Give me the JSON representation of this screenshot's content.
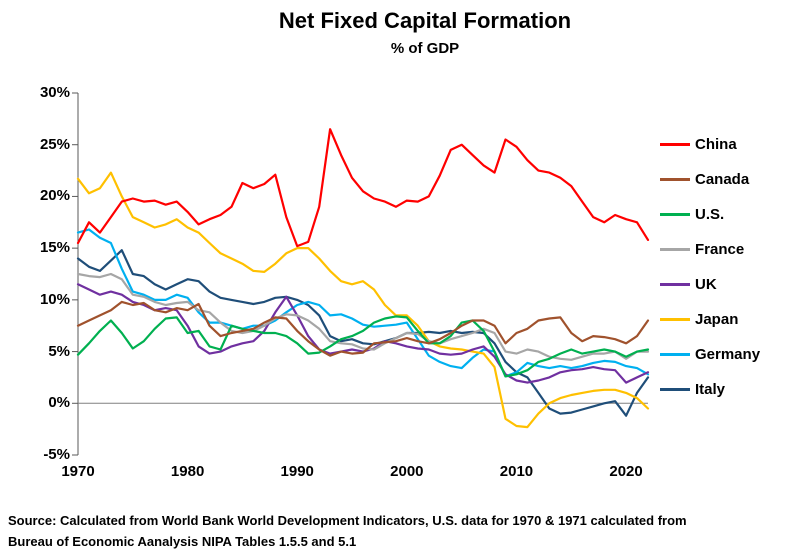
{
  "title": "Net Fixed Capital Formation",
  "subtitle": "% of GDP",
  "source": {
    "line1": "Source:  Calculated from World Bank World Development Indicators, U.S. data for 1970 & 1971 calculated from",
    "line2": "Bureau of Economic Aanalysis NIPA Tables 1.5.5 and 5.1"
  },
  "colors": {
    "axis": "#595959",
    "zero_line": "#808080",
    "background": "#FFFFFF"
  },
  "chart_data": {
    "type": "line",
    "title": "Net Fixed Capital Formation",
    "subtitle": "% of GDP",
    "xlabel": "",
    "ylabel": "",
    "xlim": [
      1970,
      2022
    ],
    "ylim": [
      -5,
      30
    ],
    "grid": false,
    "zero_line": true,
    "legend_position": "right",
    "x_ticks": [
      1970,
      1980,
      1990,
      2000,
      2010,
      2020
    ],
    "x_tick_labels": [
      "1970",
      "1980",
      "1990",
      "2000",
      "2010",
      "2020"
    ],
    "y_ticks": [
      30,
      25,
      20,
      15,
      10,
      5,
      0,
      -5
    ],
    "y_tick_labels": [
      "30%",
      "25%",
      "20%",
      "15%",
      "10%",
      "5%",
      "0%",
      "-5%"
    ],
    "years": [
      1970,
      1971,
      1972,
      1973,
      1974,
      1975,
      1976,
      1977,
      1978,
      1979,
      1980,
      1981,
      1982,
      1983,
      1984,
      1985,
      1986,
      1987,
      1988,
      1989,
      1990,
      1991,
      1992,
      1993,
      1994,
      1995,
      1996,
      1997,
      1998,
      1999,
      2000,
      2001,
      2002,
      2003,
      2004,
      2005,
      2006,
      2007,
      2008,
      2009,
      2010,
      2011,
      2012,
      2013,
      2014,
      2015,
      2016,
      2017,
      2018,
      2019,
      2020,
      2021,
      2022
    ],
    "series": [
      {
        "name": "China",
        "color": "#FF0000",
        "values": [
          15.5,
          17.5,
          16.5,
          18,
          19.5,
          19.8,
          19.5,
          19.6,
          19.2,
          19.5,
          18.5,
          17.3,
          17.8,
          18.2,
          19,
          21.3,
          20.8,
          21.2,
          22.1,
          18,
          15.2,
          15.6,
          19,
          26.5,
          24,
          21.8,
          20.5,
          19.8,
          19.5,
          19,
          19.6,
          19.5,
          20,
          22,
          24.5,
          25,
          24,
          23,
          22.3,
          25.5,
          24.8,
          23.5,
          22.5,
          22.3,
          21.8,
          21,
          19.5,
          18,
          17.5,
          18.2,
          17.8,
          17.5,
          15.8
        ]
      },
      {
        "name": "Canada",
        "color": "#A0522D",
        "values": [
          7.5,
          8,
          8.5,
          9,
          9.8,
          9.5,
          9.7,
          9,
          8.8,
          9.2,
          9,
          9.6,
          7.5,
          6.5,
          6.8,
          7,
          7.2,
          7.8,
          8.3,
          8.2,
          7,
          6,
          5.2,
          4.6,
          5,
          4.8,
          4.9,
          5.8,
          5.9,
          6,
          6.3,
          6,
          5.8,
          6.2,
          6.8,
          7.5,
          8,
          8,
          7.5,
          5.8,
          6.8,
          7.2,
          8,
          8.2,
          8.3,
          6.8,
          6,
          6.5,
          6.4,
          6.2,
          5.8,
          6.5,
          8
        ]
      },
      {
        "name": "U.S.",
        "color": "#00B050",
        "values": [
          4.7,
          5.8,
          7,
          8,
          6.8,
          5.3,
          6,
          7.2,
          8.2,
          8.3,
          6.8,
          7,
          5.5,
          5.2,
          7.5,
          7.2,
          7,
          6.8,
          6.8,
          6.5,
          5.8,
          4.8,
          4.9,
          5.5,
          6.2,
          6.5,
          7,
          7.8,
          8.2,
          8.4,
          8.3,
          7,
          5.8,
          5.8,
          6.5,
          7.8,
          8,
          7,
          5,
          2.6,
          2.8,
          3.2,
          4,
          4.3,
          4.8,
          5.2,
          4.8,
          5,
          5.2,
          5,
          4.5,
          5,
          5.2
        ]
      },
      {
        "name": "France",
        "color": "#A6A6A6",
        "values": [
          12.5,
          12.3,
          12.2,
          12.5,
          12,
          10.5,
          10.3,
          9.8,
          9.5,
          9.7,
          9.8,
          9,
          8.8,
          7.8,
          7,
          6.8,
          7,
          7.5,
          8.2,
          8.6,
          8.5,
          8,
          7.2,
          6,
          5.8,
          5.7,
          5.3,
          5.2,
          5.8,
          6.3,
          6.8,
          6.7,
          6,
          5.8,
          6.2,
          6.5,
          6.8,
          7.2,
          6.8,
          5,
          4.8,
          5.2,
          5,
          4.5,
          4.3,
          4.2,
          4.5,
          4.8,
          4.8,
          5,
          4.3,
          5,
          5
        ]
      },
      {
        "name": "UK",
        "color": "#7030A0",
        "values": [
          11.5,
          11,
          10.5,
          10.8,
          10.5,
          9.8,
          9.5,
          9,
          9.2,
          9,
          7.5,
          5.5,
          4.8,
          5,
          5.5,
          5.8,
          6,
          7,
          8.8,
          10.3,
          8.5,
          6.5,
          5.2,
          4.8,
          5,
          5.2,
          5,
          5.3,
          6,
          5.8,
          5.5,
          5.3,
          5.2,
          4.8,
          4.7,
          4.8,
          5.2,
          5.5,
          4.5,
          2.8,
          2.2,
          2,
          2.2,
          2.5,
          3,
          3.2,
          3.3,
          3.5,
          3.3,
          3.2,
          2,
          2.5,
          3
        ]
      },
      {
        "name": "Japan",
        "color": "#FFC000",
        "values": [
          21.7,
          20.3,
          20.8,
          22.3,
          20,
          18,
          17.5,
          17,
          17.3,
          17.8,
          17,
          16.5,
          15.5,
          14.5,
          14,
          13.5,
          12.8,
          12.7,
          13.5,
          14.5,
          15,
          15,
          14,
          12.8,
          11.8,
          11.5,
          11.8,
          11,
          9.5,
          8.5,
          8.5,
          7.5,
          6,
          5.5,
          5.3,
          5.2,
          5,
          4.8,
          3.5,
          -1.5,
          -2.2,
          -2.3,
          -1,
          0,
          0.5,
          0.8,
          1,
          1.2,
          1.3,
          1.3,
          1,
          0.5,
          -0.5
        ]
      },
      {
        "name": "Germany",
        "color": "#00B0F0",
        "values": [
          16.5,
          16.8,
          16,
          15.5,
          13,
          10.8,
          10.5,
          10,
          10,
          10.5,
          10.2,
          8.8,
          7.8,
          7.8,
          7.5,
          7.2,
          7.5,
          7.5,
          8,
          8.8,
          9.5,
          9.8,
          9.5,
          8.5,
          8.6,
          8.2,
          7.6,
          7.4,
          7.5,
          7.6,
          7.8,
          6.2,
          4.6,
          4,
          3.6,
          3.4,
          4.4,
          5.2,
          5,
          2.6,
          3,
          3.9,
          3.6,
          3.4,
          3.6,
          3.4,
          3.6,
          3.9,
          4.1,
          4,
          3.6,
          3.4,
          2.8
        ]
      },
      {
        "name": "Italy",
        "color": "#1F4E79",
        "values": [
          14,
          13.2,
          12.8,
          13.8,
          14.8,
          12.5,
          12.3,
          11.5,
          11,
          11.5,
          12,
          11.8,
          10.8,
          10.2,
          10,
          9.8,
          9.6,
          9.8,
          10.2,
          10.3,
          10,
          9.5,
          8.5,
          6.5,
          6,
          6.2,
          5.8,
          5.7,
          6,
          6.3,
          6.8,
          6.8,
          6.9,
          6.8,
          7,
          6.8,
          6.9,
          6.8,
          5.8,
          4,
          3,
          2.5,
          1,
          -0.5,
          -1,
          -0.9,
          -0.6,
          -0.3,
          0,
          0.2,
          -1.2,
          1,
          2.5
        ]
      }
    ]
  }
}
